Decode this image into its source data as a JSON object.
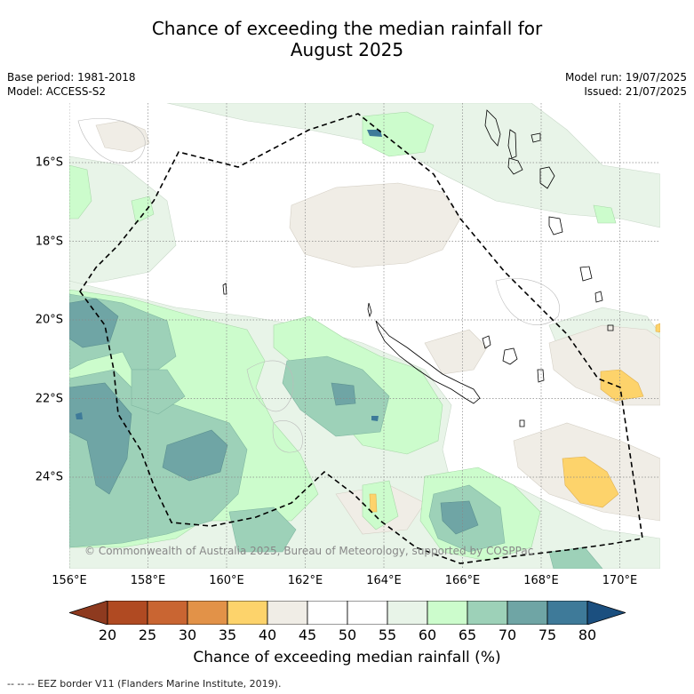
{
  "title_line1": "Chance of exceeding the median rainfall for",
  "title_line2": "August 2025",
  "base_period": "Base period: 1981-2018",
  "model": "Model: ACCESS-S2",
  "model_run": "Model run: 19/07/2025",
  "issued": "Issued: 21/07/2025",
  "lat_ticks": [
    "16°S",
    "18°S",
    "20°S",
    "22°S",
    "24°S"
  ],
  "lon_ticks": [
    "156°E",
    "158°E",
    "160°E",
    "162°E",
    "164°E",
    "166°E",
    "168°E",
    "170°E"
  ],
  "copyright": "© Commonwealth of Australia 2025, Bureau of Meteorology, supported by COSPPac",
  "colorbar": {
    "title": "Chance of exceeding median rainfall (%)",
    "labels": [
      "20",
      "25",
      "30",
      "35",
      "40",
      "45",
      "50",
      "55",
      "60",
      "65",
      "70",
      "75",
      "80"
    ],
    "colors": [
      "#8e3a1f",
      "#b04a22",
      "#c96532",
      "#e29248",
      "#fdd36b",
      "#f0ede6",
      "#ffffff",
      "#ffffff",
      "#e8f4e8",
      "#ccfccc",
      "#9dd1b8",
      "#6fa5a5",
      "#3e7a99",
      "#1b4f7f"
    ]
  },
  "footer": "--  --  -- EEZ border V11 (Flanders Marine Institute, 2019)."
}
